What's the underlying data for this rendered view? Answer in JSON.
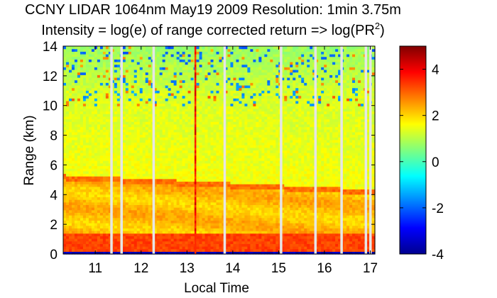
{
  "chart_data": {
    "type": "heatmap",
    "title": "CCNY LIDAR 1064nm May19 2009 Resolution: 1min 3.75m",
    "subtitle_main": "Intensity = log(e) of range corrected return => log(PR",
    "subtitle_sup": "2",
    "subtitle_end": ")",
    "xlabel": "Local Time",
    "ylabel": "Range (km)",
    "xlim": [
      10.3,
      17.1
    ],
    "ylim": [
      0,
      14
    ],
    "xticks": [
      11,
      12,
      13,
      14,
      15,
      16,
      17
    ],
    "yticks": [
      0,
      2,
      4,
      6,
      8,
      10,
      12,
      14
    ],
    "colorbar": {
      "range": [
        -4,
        5
      ],
      "ticks": [
        -4,
        -2,
        0,
        2,
        4
      ],
      "colormap": "jet"
    },
    "layers": [
      {
        "feature": "surface_layer",
        "range_km": [
          0.2,
          1.4
        ],
        "value": 3.3
      },
      {
        "feature": "aerosol_layer_top",
        "range_start_km": 5.0,
        "range_end_km": 4.0,
        "value": 2.9
      },
      {
        "feature": "upper_noise_region",
        "range_km": [
          11.0,
          14.0
        ],
        "value": 0.5
      }
    ],
    "data_gaps_local_time": [
      11.35,
      11.57,
      12.27,
      13.18,
      13.82,
      15.05,
      15.8,
      16.37,
      16.9,
      17.0
    ],
    "spike_time": 13.18
  }
}
